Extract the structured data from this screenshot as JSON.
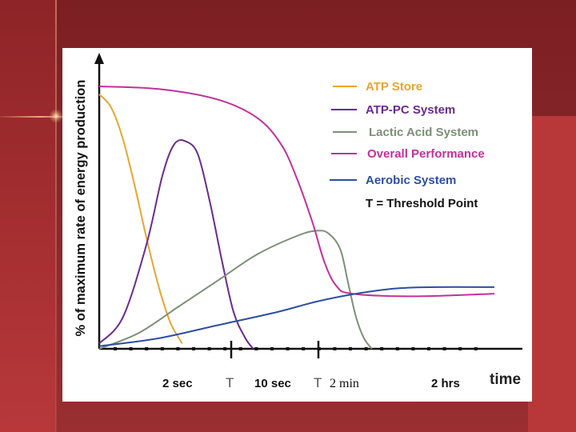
{
  "chart_data": {
    "type": "line",
    "ylabel": "% of maximum rate of energy production",
    "xlabel": "time",
    "x_ticks": [
      "2 sec",
      "T",
      "10 sec",
      "T",
      "2 min",
      "2 hrs"
    ],
    "legend": [
      {
        "label": "ATP Store",
        "color": "#e8a530"
      },
      {
        "label": "ATP-PC System",
        "color": "#6a2a8e"
      },
      {
        "label": "Lactic Acid System",
        "color": "#7d8f78"
      },
      {
        "label": "Overall Performance",
        "color": "#c2309a"
      },
      {
        "label": "Aerobic System",
        "color": "#2c4fa0"
      }
    ],
    "legend_note": "T = Threshold Point",
    "ylim": [
      0,
      100
    ],
    "xlim": [
      0,
      100
    ],
    "series": [
      {
        "name": "ATP Store",
        "color": "#e8a530",
        "points": [
          [
            0,
            97
          ],
          [
            3,
            92
          ],
          [
            6,
            80
          ],
          [
            9,
            62
          ],
          [
            12,
            42
          ],
          [
            15,
            24
          ],
          [
            18,
            10
          ],
          [
            21,
            2
          ]
        ]
      },
      {
        "name": "ATP-PC System",
        "color": "#6a2a8e",
        "points": [
          [
            0,
            2
          ],
          [
            6,
            12
          ],
          [
            12,
            40
          ],
          [
            16,
            66
          ],
          [
            19,
            78
          ],
          [
            22,
            79
          ],
          [
            25,
            74
          ],
          [
            28,
            56
          ],
          [
            31,
            34
          ],
          [
            34,
            14
          ],
          [
            37,
            4
          ],
          [
            39,
            0
          ]
        ]
      },
      {
        "name": "Lactic Acid System",
        "color": "#7d8f78",
        "points": [
          [
            0,
            0
          ],
          [
            10,
            6
          ],
          [
            20,
            16
          ],
          [
            30,
            26
          ],
          [
            40,
            36
          ],
          [
            50,
            43
          ],
          [
            55,
            45
          ],
          [
            58,
            44
          ],
          [
            61,
            38
          ],
          [
            63,
            25
          ],
          [
            65,
            12
          ],
          [
            67,
            4
          ],
          [
            69,
            0
          ]
        ]
      },
      {
        "name": "Overall Performance",
        "color": "#c2309a",
        "points": [
          [
            0,
            100
          ],
          [
            15,
            99
          ],
          [
            30,
            95
          ],
          [
            40,
            88
          ],
          [
            46,
            78
          ],
          [
            50,
            65
          ],
          [
            54,
            48
          ],
          [
            57,
            33
          ],
          [
            60,
            24
          ],
          [
            64,
            21
          ],
          [
            80,
            20
          ],
          [
            100,
            21
          ]
        ]
      },
      {
        "name": "Aerobic System",
        "color": "#2c4fa0",
        "points": [
          [
            0,
            1
          ],
          [
            15,
            4
          ],
          [
            30,
            9
          ],
          [
            45,
            14
          ],
          [
            55,
            18
          ],
          [
            65,
            21
          ],
          [
            75,
            23
          ],
          [
            85,
            23.5
          ],
          [
            100,
            23.5
          ]
        ]
      }
    ],
    "grid": false
  }
}
